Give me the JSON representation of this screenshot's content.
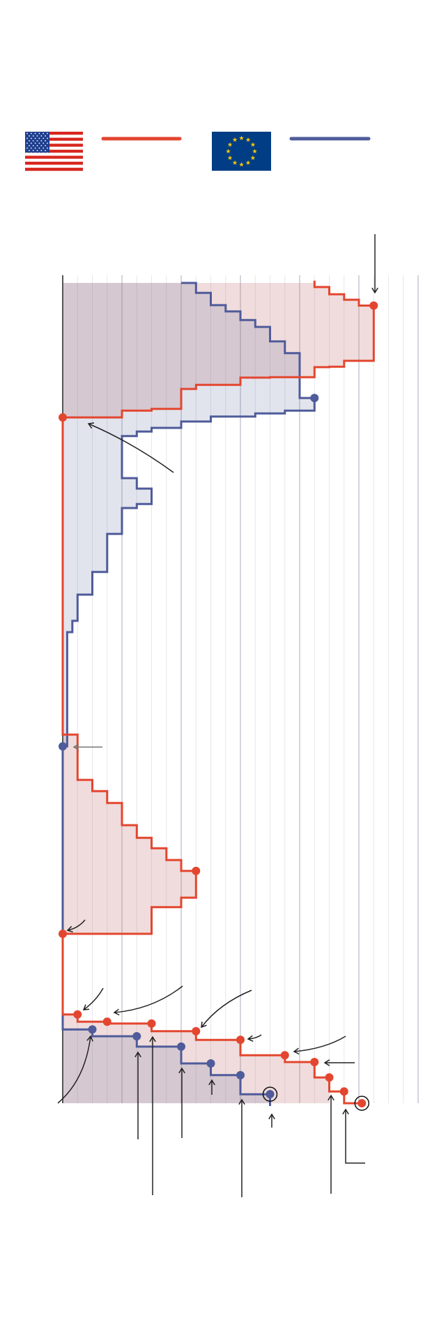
{
  "colors": {
    "us": "#e3462f",
    "eu": "#4f5b9a",
    "us_fill": "#e9d3d3",
    "eu_fill": "#dfe1ea",
    "axis": "#555555",
    "grid": "#d9dbe2",
    "annotation": "#222222"
  },
  "legend": [
    {
      "icon": "us-flag-icon",
      "series": "us"
    },
    {
      "icon": "eu-flag-icon",
      "series": "eu"
    }
  ],
  "chart_data": {
    "type": "line",
    "step": true,
    "title": "",
    "xlabel": "",
    "ylabel": "",
    "grid": {
      "vertical": true,
      "major_every": 4
    },
    "xlim": [
      0,
      24
    ],
    "ylim": [
      18.11,
      -0.17
    ],
    "series": [
      {
        "key": "us",
        "color": "#e3462f",
        "points": [
          [
            17,
            -0.05
          ],
          [
            17,
            0.09
          ],
          [
            18,
            0.09
          ],
          [
            18,
            0.25
          ],
          [
            19,
            0.25
          ],
          [
            19,
            0.37
          ],
          [
            20,
            0.37
          ],
          [
            20,
            0.5
          ],
          [
            21,
            0.5
          ],
          [
            21,
            1.72
          ],
          [
            19,
            1.72
          ],
          [
            19,
            1.85
          ],
          [
            18,
            1.85
          ],
          [
            18,
            1.86
          ],
          [
            17,
            1.86
          ],
          [
            17,
            2.08
          ],
          [
            14,
            2.08
          ],
          [
            14,
            2.09
          ],
          [
            12,
            2.09
          ],
          [
            12,
            2.25
          ],
          [
            9,
            2.25
          ],
          [
            9,
            2.34
          ],
          [
            8,
            2.34
          ],
          [
            8,
            2.78
          ],
          [
            6,
            2.78
          ],
          [
            6,
            2.82
          ],
          [
            4,
            2.82
          ],
          [
            4,
            2.97
          ],
          [
            0,
            2.97
          ],
          [
            0,
            9.97
          ],
          [
            1,
            9.97
          ],
          [
            1,
            10.97
          ],
          [
            2,
            10.97
          ],
          [
            2,
            11.22
          ],
          [
            3,
            11.22
          ],
          [
            3,
            11.48
          ],
          [
            4,
            11.48
          ],
          [
            4,
            11.97
          ],
          [
            5,
            11.97
          ],
          [
            5,
            12.25
          ],
          [
            6,
            12.25
          ],
          [
            6,
            12.48
          ],
          [
            7,
            12.48
          ],
          [
            7,
            12.74
          ],
          [
            8,
            12.74
          ],
          [
            8,
            12.98
          ],
          [
            9,
            12.98
          ],
          [
            9,
            13.57
          ],
          [
            8,
            13.57
          ],
          [
            8,
            13.78
          ],
          [
            6,
            13.78
          ],
          [
            6,
            14.37
          ],
          [
            0,
            14.37
          ],
          [
            0,
            16.15
          ],
          [
            1,
            16.15
          ],
          [
            1,
            16.31
          ],
          [
            3,
            16.31
          ],
          [
            3,
            16.35
          ],
          [
            6,
            16.35
          ],
          [
            6,
            16.52
          ],
          [
            9,
            16.52
          ],
          [
            9,
            16.71
          ],
          [
            12,
            16.71
          ],
          [
            12,
            17.05
          ],
          [
            15,
            17.05
          ],
          [
            15,
            17.2
          ],
          [
            17,
            17.2
          ],
          [
            17,
            17.54
          ],
          [
            18,
            17.54
          ],
          [
            18,
            17.85
          ],
          [
            19,
            17.85
          ],
          [
            19,
            18.11
          ],
          [
            20.2,
            18.11
          ]
        ],
        "markers": [
          [
            21,
            0.5
          ],
          [
            0,
            2.97
          ],
          [
            9,
            12.98
          ],
          [
            0,
            14.37
          ],
          [
            1,
            16.15
          ],
          [
            3,
            16.31
          ],
          [
            6,
            16.35
          ],
          [
            9,
            16.52
          ],
          [
            12,
            16.71
          ],
          [
            15,
            17.05
          ],
          [
            17,
            17.2
          ],
          [
            18,
            17.54
          ],
          [
            19,
            17.85
          ],
          [
            20.2,
            18.11
          ]
        ],
        "highlighted": [
          [
            20.2,
            18.11
          ]
        ],
        "areas": [
          [
            [
              0,
              0
            ],
            [
              17,
              0
            ],
            [
              17,
              0.09
            ],
            [
              18,
              0.09
            ],
            [
              18,
              0.25
            ],
            [
              19,
              0.25
            ],
            [
              19,
              0.37
            ],
            [
              20,
              0.37
            ],
            [
              20,
              0.5
            ],
            [
              21,
              0.5
            ],
            [
              21,
              1.72
            ],
            [
              19,
              1.72
            ],
            [
              19,
              1.85
            ],
            [
              18,
              1.85
            ],
            [
              18,
              1.86
            ],
            [
              17,
              1.86
            ],
            [
              17,
              2.08
            ],
            [
              14,
              2.08
            ],
            [
              14,
              2.09
            ],
            [
              12,
              2.09
            ],
            [
              12,
              2.25
            ],
            [
              9,
              2.25
            ],
            [
              9,
              2.34
            ],
            [
              8,
              2.34
            ],
            [
              8,
              2.78
            ],
            [
              6,
              2.78
            ],
            [
              6,
              2.82
            ],
            [
              4,
              2.82
            ],
            [
              4,
              2.97
            ],
            [
              0,
              2.97
            ]
          ],
          [
            [
              0,
              9.97
            ],
            [
              1,
              9.97
            ],
            [
              1,
              10.97
            ],
            [
              2,
              10.97
            ],
            [
              2,
              11.22
            ],
            [
              3,
              11.22
            ],
            [
              3,
              11.48
            ],
            [
              4,
              11.48
            ],
            [
              4,
              11.97
            ],
            [
              5,
              11.97
            ],
            [
              5,
              12.25
            ],
            [
              6,
              12.25
            ],
            [
              6,
              12.48
            ],
            [
              7,
              12.48
            ],
            [
              7,
              12.74
            ],
            [
              8,
              12.74
            ],
            [
              8,
              12.98
            ],
            [
              9,
              12.98
            ],
            [
              9,
              13.57
            ],
            [
              8,
              13.57
            ],
            [
              8,
              13.78
            ],
            [
              6,
              13.78
            ],
            [
              6,
              14.37
            ],
            [
              0,
              14.37
            ]
          ],
          [
            [
              0,
              16.15
            ],
            [
              1,
              16.15
            ],
            [
              1,
              16.31
            ],
            [
              3,
              16.31
            ],
            [
              3,
              16.35
            ],
            [
              6,
              16.35
            ],
            [
              6,
              16.52
            ],
            [
              9,
              16.52
            ],
            [
              9,
              16.71
            ],
            [
              12,
              16.71
            ],
            [
              12,
              17.05
            ],
            [
              15,
              17.05
            ],
            [
              15,
              17.2
            ],
            [
              17,
              17.2
            ],
            [
              17,
              17.54
            ],
            [
              18,
              17.54
            ],
            [
              18,
              18.11
            ],
            [
              0,
              18.11
            ]
          ]
        ]
      },
      {
        "key": "eu",
        "color": "#4f5b9a",
        "points": [
          [
            8,
            0
          ],
          [
            9,
            0
          ],
          [
            9,
            0.22
          ],
          [
            10,
            0.22
          ],
          [
            10,
            0.49
          ],
          [
            11,
            0.49
          ],
          [
            11,
            0.63
          ],
          [
            12,
            0.63
          ],
          [
            12,
            0.82
          ],
          [
            13,
            0.82
          ],
          [
            13,
            0.97
          ],
          [
            14,
            0.97
          ],
          [
            14,
            1.29
          ],
          [
            15,
            1.29
          ],
          [
            15,
            1.55
          ],
          [
            16,
            1.55
          ],
          [
            16,
            2.54
          ],
          [
            17,
            2.54
          ],
          [
            17,
            2.82
          ],
          [
            15,
            2.82
          ],
          [
            15,
            2.88
          ],
          [
            13,
            2.88
          ],
          [
            13,
            2.95
          ],
          [
            10,
            2.95
          ],
          [
            10,
            3.06
          ],
          [
            8,
            3.06
          ],
          [
            8,
            3.2
          ],
          [
            6,
            3.2
          ],
          [
            6,
            3.28
          ],
          [
            5,
            3.28
          ],
          [
            5,
            3.38
          ],
          [
            4,
            3.38
          ],
          [
            4,
            4.31
          ],
          [
            5,
            4.31
          ],
          [
            5,
            4.54
          ],
          [
            6,
            4.54
          ],
          [
            6,
            4.88
          ],
          [
            5,
            4.88
          ],
          [
            5,
            4.97
          ],
          [
            4,
            4.97
          ],
          [
            4,
            5.54
          ],
          [
            3,
            5.54
          ],
          [
            3,
            6.38
          ],
          [
            2,
            6.38
          ],
          [
            2,
            6.88
          ],
          [
            1,
            6.88
          ],
          [
            1,
            7.46
          ],
          [
            0.65,
            7.46
          ],
          [
            0.65,
            7.71
          ],
          [
            0.3,
            7.71
          ],
          [
            0.3,
            10.23
          ],
          [
            0,
            10.23
          ],
          [
            0,
            16.48
          ],
          [
            2,
            16.48
          ],
          [
            2,
            16.63
          ],
          [
            5,
            16.63
          ],
          [
            5,
            16.86
          ],
          [
            8,
            16.86
          ],
          [
            8,
            17.23
          ],
          [
            10,
            17.23
          ],
          [
            10,
            17.49
          ],
          [
            12,
            17.49
          ],
          [
            12,
            17.91
          ],
          [
            14,
            17.91
          ],
          [
            14,
            18.17
          ]
        ],
        "markers": [
          [
            17,
            2.54
          ],
          [
            0,
            10.23
          ],
          [
            2,
            16.48
          ],
          [
            5,
            16.63
          ],
          [
            8,
            16.86
          ],
          [
            10,
            17.23
          ],
          [
            12,
            17.49
          ],
          [
            14,
            17.91
          ]
        ],
        "highlighted": [
          [
            14,
            17.91
          ]
        ],
        "areas": [
          [
            [
              0,
              0
            ],
            [
              8,
              0
            ],
            [
              9,
              0
            ],
            [
              9,
              0.22
            ],
            [
              10,
              0.22
            ],
            [
              10,
              0.49
            ],
            [
              11,
              0.49
            ],
            [
              11,
              0.63
            ],
            [
              12,
              0.63
            ],
            [
              12,
              0.82
            ],
            [
              13,
              0.82
            ],
            [
              13,
              0.97
            ],
            [
              14,
              0.97
            ],
            [
              14,
              1.29
            ],
            [
              15,
              1.29
            ],
            [
              15,
              1.55
            ],
            [
              16,
              1.55
            ],
            [
              16,
              2.54
            ],
            [
              17,
              2.54
            ],
            [
              17,
              2.82
            ],
            [
              15,
              2.82
            ],
            [
              15,
              2.88
            ],
            [
              13,
              2.88
            ],
            [
              13,
              2.95
            ],
            [
              10,
              2.95
            ],
            [
              10,
              3.06
            ],
            [
              8,
              3.06
            ],
            [
              8,
              3.2
            ],
            [
              6,
              3.2
            ],
            [
              6,
              3.28
            ],
            [
              5,
              3.28
            ],
            [
              5,
              3.38
            ],
            [
              4,
              3.38
            ],
            [
              4,
              4.31
            ],
            [
              5,
              4.31
            ],
            [
              5,
              4.54
            ],
            [
              6,
              4.54
            ],
            [
              6,
              4.88
            ],
            [
              5,
              4.88
            ],
            [
              5,
              4.97
            ],
            [
              4,
              4.97
            ],
            [
              4,
              5.54
            ],
            [
              3,
              5.54
            ],
            [
              3,
              6.38
            ],
            [
              2,
              6.38
            ],
            [
              2,
              6.88
            ],
            [
              1,
              6.88
            ],
            [
              1,
              7.46
            ],
            [
              0.65,
              7.46
            ],
            [
              0.65,
              7.71
            ],
            [
              0.3,
              7.71
            ],
            [
              0.3,
              10.23
            ],
            [
              0,
              10.23
            ]
          ],
          [
            [
              0,
              16.48
            ],
            [
              2,
              16.48
            ],
            [
              2,
              16.63
            ],
            [
              5,
              16.63
            ],
            [
              5,
              16.86
            ],
            [
              8,
              16.86
            ],
            [
              8,
              17.23
            ],
            [
              10,
              17.23
            ],
            [
              10,
              17.49
            ],
            [
              12,
              17.49
            ],
            [
              12,
              17.91
            ],
            [
              14,
              17.91
            ],
            [
              14,
              18.11
            ],
            [
              0,
              18.11
            ]
          ]
        ]
      }
    ]
  }
}
